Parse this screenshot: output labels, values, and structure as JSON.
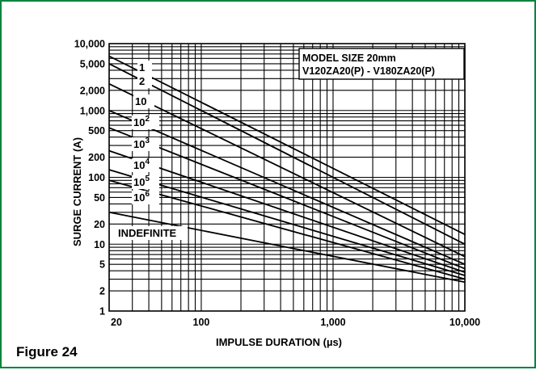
{
  "figure_caption": "Figure 24",
  "chart_data": {
    "type": "line",
    "title": "",
    "xlabel": "IMPULSE DURATION (µs)",
    "ylabel": "SURGE CURRENT (A)",
    "x_scale": "log",
    "y_scale": "log",
    "xlim": [
      20,
      10000
    ],
    "ylim": [
      1,
      10000
    ],
    "grid": true,
    "x_ticks": [
      {
        "value": 20,
        "label": "20"
      },
      {
        "value": 100,
        "label": "100"
      },
      {
        "value": 1000,
        "label": "1,000"
      },
      {
        "value": 10000,
        "label": "10,000"
      }
    ],
    "y_ticks": [
      {
        "value": 1,
        "label": "1"
      },
      {
        "value": 2,
        "label": "2"
      },
      {
        "value": 5,
        "label": "5"
      },
      {
        "value": 10,
        "label": "10"
      },
      {
        "value": 20,
        "label": "20"
      },
      {
        "value": 50,
        "label": "50"
      },
      {
        "value": 100,
        "label": "100"
      },
      {
        "value": 200,
        "label": "200"
      },
      {
        "value": 500,
        "label": "500"
      },
      {
        "value": 1000,
        "label": "1,000"
      },
      {
        "value": 2000,
        "label": "2,000"
      },
      {
        "value": 5000,
        "label": "5,000"
      },
      {
        "value": 10000,
        "label": "10,000"
      }
    ],
    "annotation": [
      "MODEL SIZE 20mm",
      "V120ZA20(P) - V180ZA20(P)"
    ],
    "series": [
      {
        "name": "1",
        "sup": "",
        "x": [
          20,
          10000
        ],
        "y": [
          6500,
          14
        ]
      },
      {
        "name": "2",
        "sup": "",
        "x": [
          20,
          10000
        ],
        "y": [
          5000,
          10
        ]
      },
      {
        "name": "10",
        "sup": "",
        "x": [
          20,
          10000
        ],
        "y": [
          2500,
          6.5
        ]
      },
      {
        "name": "10",
        "sup": "2",
        "x": [
          20,
          10000
        ],
        "y": [
          1000,
          5
        ]
      },
      {
        "name": "10",
        "sup": "3",
        "x": [
          20,
          10000
        ],
        "y": [
          550,
          4.3
        ]
      },
      {
        "name": "10",
        "sup": "4",
        "x": [
          20,
          10000
        ],
        "y": [
          250,
          3.8
        ]
      },
      {
        "name": "10",
        "sup": "5",
        "x": [
          20,
          10000
        ],
        "y": [
          130,
          3.4
        ]
      },
      {
        "name": "10",
        "sup": "6",
        "x": [
          20,
          10000
        ],
        "y": [
          90,
          3.0
        ]
      },
      {
        "name": "INDEFINITE",
        "sup": "",
        "x": [
          20,
          10000
        ],
        "y": [
          30,
          2.7
        ]
      }
    ]
  }
}
